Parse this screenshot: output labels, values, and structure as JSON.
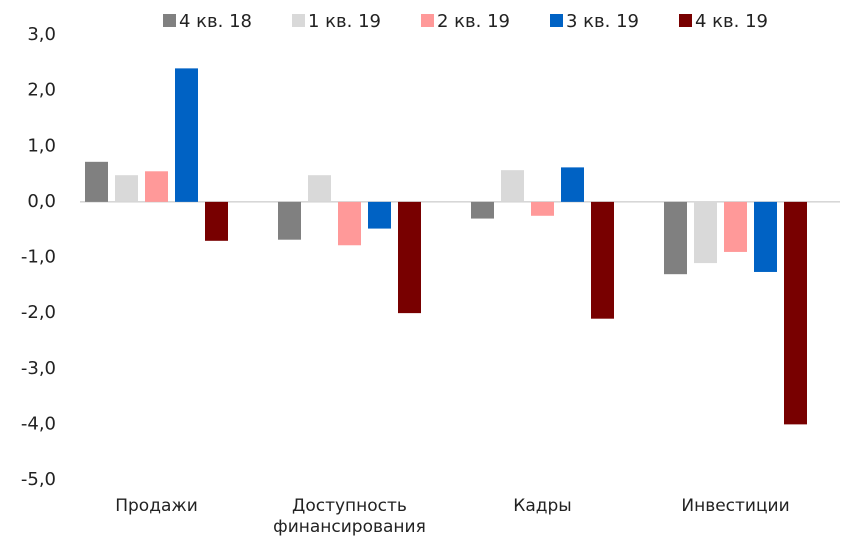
{
  "chart_data": {
    "type": "bar",
    "categories": [
      "Продажи",
      "Доступность финансирования",
      "Кадры",
      "Инвестиции"
    ],
    "series": [
      {
        "name": "4 кв. 18",
        "color": "#808080",
        "values": [
          0.72,
          -0.68,
          -0.3,
          -1.3
        ]
      },
      {
        "name": "1 кв. 19",
        "color": "#d9d9d9",
        "values": [
          0.48,
          0.48,
          0.57,
          -1.1
        ]
      },
      {
        "name": "2 кв. 19",
        "color": "#ff9999",
        "values": [
          0.55,
          -0.78,
          -0.25,
          -0.9
        ]
      },
      {
        "name": "3 кв. 19",
        "color": "#0062c4",
        "values": [
          2.4,
          -0.48,
          0.62,
          -1.26
        ]
      },
      {
        "name": "4 кв. 19",
        "color": "#780000",
        "values": [
          -0.7,
          -2.0,
          -2.1,
          -4.0
        ]
      }
    ],
    "ylim": [
      -5,
      3
    ],
    "yticks": [
      {
        "value": -5,
        "label": "-5,0"
      },
      {
        "value": -4,
        "label": "-4,0"
      },
      {
        "value": -3,
        "label": "-3,0"
      },
      {
        "value": -2,
        "label": "-2,0"
      },
      {
        "value": -1,
        "label": "-1,0"
      },
      {
        "value": 0,
        "label": "0,0"
      },
      {
        "value": 1,
        "label": "1,0"
      },
      {
        "value": 2,
        "label": "2,0"
      },
      {
        "value": 3,
        "label": "3,0"
      }
    ],
    "grid": false,
    "legend": "top"
  }
}
